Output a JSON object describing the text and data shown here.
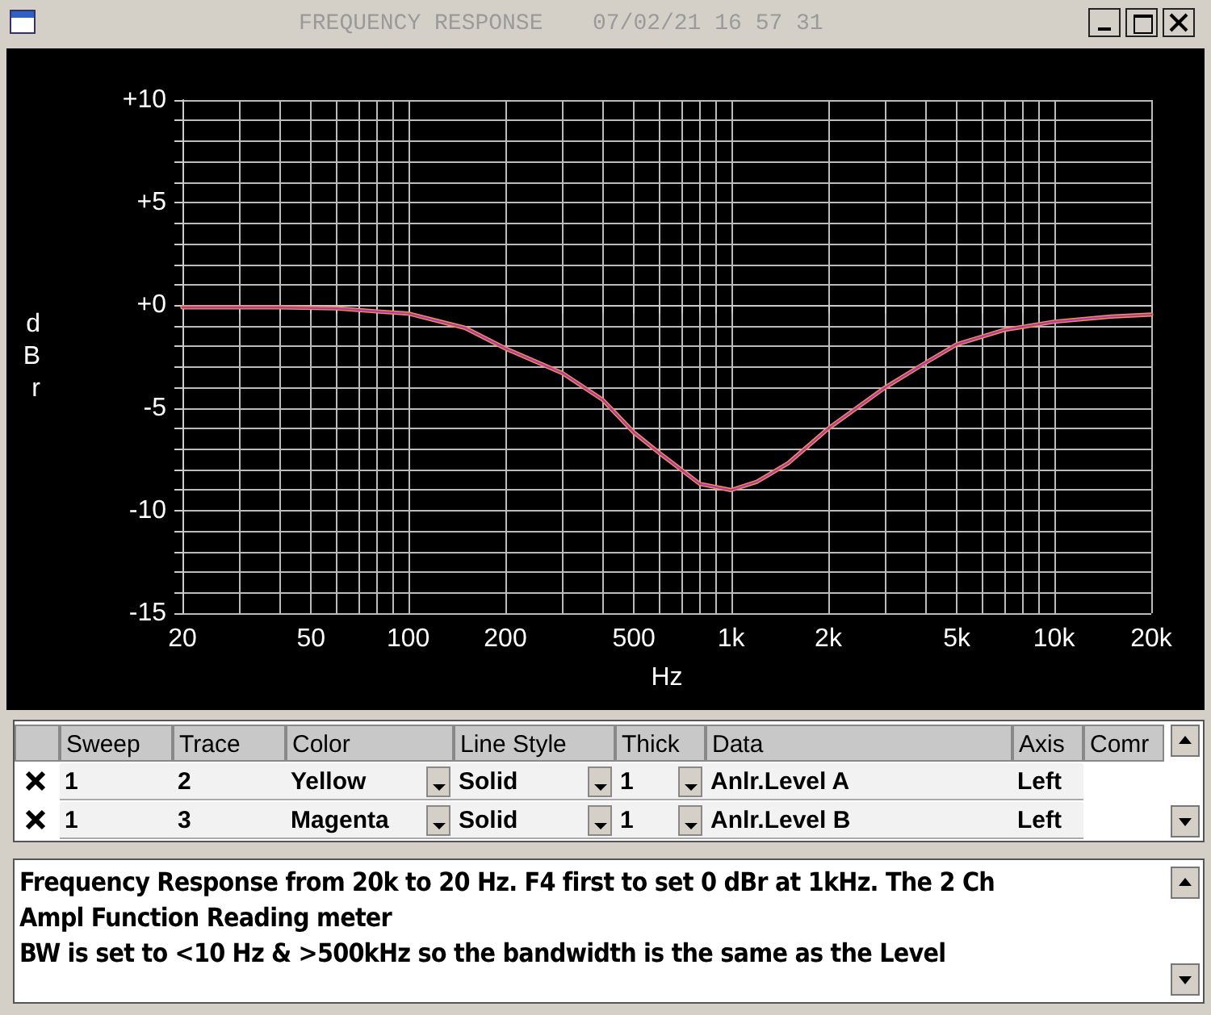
{
  "chart_data": [
    {
      "type": "line",
      "title": "FREQUENCY RESPONSE",
      "subtitle": "07/02/21 16 57 31",
      "xlabel": "Hz",
      "ylabel": "dBr",
      "log": "x",
      "grid": true,
      "marker": "none",
      "line_style": "solid",
      "x": [
        20,
        30,
        40,
        60,
        80,
        100,
        150,
        200,
        300,
        400,
        500,
        600,
        700,
        800,
        1000,
        1200,
        1500,
        2000,
        3000,
        4000,
        5000,
        7000,
        10000,
        15000,
        20000
      ],
      "series": [
        {
          "color": "#f5924a",
          "values": [
            -0.1,
            -0.1,
            -0.1,
            -0.15,
            -0.3,
            -0.4,
            -1.1,
            -2.1,
            -3.3,
            -4.6,
            -6.2,
            -7.2,
            -8.0,
            -8.7,
            -9.0,
            -8.6,
            -7.7,
            -6.0,
            -4.0,
            -2.8,
            -1.9,
            -1.2,
            -0.8,
            -0.55,
            -0.45
          ]
        },
        {
          "color": "#b03aa8",
          "values": [
            -0.1,
            -0.1,
            -0.1,
            -0.15,
            -0.3,
            -0.4,
            -1.1,
            -2.1,
            -3.3,
            -4.6,
            -6.2,
            -7.2,
            -8.0,
            -8.7,
            -9.0,
            -8.6,
            -7.7,
            -6.0,
            -4.0,
            -2.8,
            -1.9,
            -1.2,
            -0.8,
            -0.55,
            -0.45
          ]
        }
      ],
      "xlim": [
        20,
        20000
      ],
      "xticks": [
        20,
        {
          "value": 30,
          "label": null
        },
        {
          "value": 40,
          "label": null
        },
        50,
        {
          "value": 60,
          "label": null
        },
        {
          "value": 70,
          "label": null
        },
        {
          "value": 80,
          "label": null
        },
        {
          "value": 90,
          "label": null
        },
        100,
        200,
        {
          "value": 300,
          "label": null
        },
        {
          "value": 400,
          "label": null
        },
        500,
        {
          "value": 600,
          "label": null
        },
        {
          "value": 700,
          "label": null
        },
        {
          "value": 800,
          "label": null
        },
        {
          "value": 900,
          "label": null
        },
        {
          "value": 1000,
          "label": "1k"
        },
        {
          "value": 2000,
          "label": "2k"
        },
        {
          "value": 3000,
          "label": null
        },
        {
          "value": 4000,
          "label": null
        },
        {
          "value": 5000,
          "label": "5k"
        },
        {
          "value": 6000,
          "label": null
        },
        {
          "value": 7000,
          "label": null
        },
        {
          "value": 8000,
          "label": null
        },
        {
          "value": 9000,
          "label": null
        },
        {
          "value": 10000,
          "label": "10k"
        },
        {
          "value": 20000,
          "label": "20k"
        }
      ],
      "ylim": [
        -15,
        10
      ],
      "yticks": [
        {
          "value": -15,
          "label": "-15"
        },
        {
          "value": -14,
          "label": null
        },
        {
          "value": -13,
          "label": null
        },
        {
          "value": -12,
          "label": null
        },
        {
          "value": -11,
          "label": null
        },
        {
          "value": -10,
          "label": "-10"
        },
        {
          "value": -9,
          "label": null
        },
        {
          "value": -8,
          "label": null
        },
        {
          "value": -7,
          "label": null
        },
        {
          "value": -6,
          "label": null
        },
        {
          "value": -5,
          "label": "-5"
        },
        {
          "value": -4,
          "label": null
        },
        {
          "value": -3,
          "label": null
        },
        {
          "value": -2,
          "label": null
        },
        {
          "value": -1,
          "label": null
        },
        {
          "value": 0,
          "label": "+0"
        },
        {
          "value": 1,
          "label": null
        },
        {
          "value": 2,
          "label": null
        },
        {
          "value": 3,
          "label": null
        },
        {
          "value": 4,
          "label": null
        },
        {
          "value": 5,
          "label": "+5"
        },
        {
          "value": 6,
          "label": null
        },
        {
          "value": 7,
          "label": null
        },
        {
          "value": 8,
          "label": null
        },
        {
          "value": 9,
          "label": null
        },
        {
          "value": 10,
          "label": "+10"
        }
      ]
    },
    {
      "type": "other",
      "annotations": [
        "Sweep",
        "Trace",
        "Color",
        "Line Style",
        "Thick",
        "Data",
        "Axis",
        "Comr",
        "1",
        "2",
        "Yellow",
        "Solid",
        "1",
        "Anlr.Level A",
        "Left",
        "1",
        "3",
        "Magenta",
        "Solid",
        "1",
        "Anlr.Level B",
        "Left"
      ]
    },
    {
      "type": "other",
      "annotations": [
        "Frequency Response from 20k to 20 Hz.  F4 first to set 0 dBr at 1kHz.  The 2 Ch Ampl Function Reading meter",
        "BW is set to <10 Hz & >500kHz so the bandwidth is the same as the Level"
      ]
    }
  ]
}
